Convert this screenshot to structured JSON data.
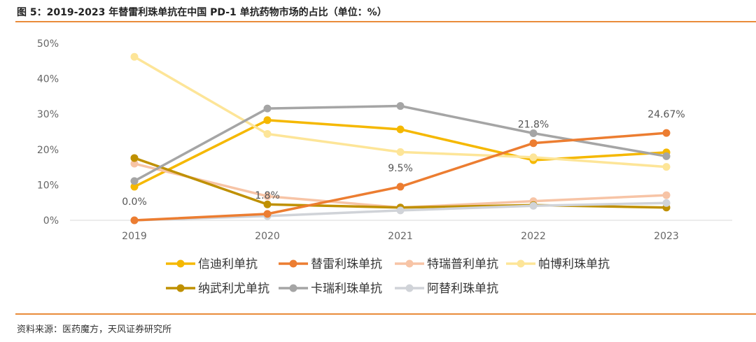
{
  "header": {
    "title": "图 5：2019-2023 年替雷利珠单抗在中国 PD-1 单抗药物市场的占比（单位：%）"
  },
  "footer": {
    "source": "资料来源：医药魔方，天风证券研究所"
  },
  "chart_data": {
    "type": "line",
    "categories": [
      "2019",
      "2020",
      "2021",
      "2022",
      "2023"
    ],
    "ylim": [
      0,
      50
    ],
    "yticks": [
      "0%",
      "10%",
      "20%",
      "30%",
      "40%",
      "50%"
    ],
    "grid": false,
    "legend_position": "bottom",
    "series": [
      {
        "name": "信迪利单抗",
        "color": "#f5b800",
        "values": [
          9.5,
          28.3,
          25.7,
          17.0,
          19.2
        ]
      },
      {
        "name": "替雷利珠单抗",
        "color": "#ec7d31",
        "values": [
          0.0,
          1.8,
          9.5,
          21.8,
          24.67
        ]
      },
      {
        "name": "特瑞普利单抗",
        "color": "#f7c4a6",
        "values": [
          16.0,
          6.8,
          3.6,
          5.4,
          7.1
        ]
      },
      {
        "name": "帕博利珠单抗",
        "color": "#fde598",
        "values": [
          46.2,
          24.4,
          19.3,
          17.8,
          15.1
        ]
      },
      {
        "name": "纳武利尤单抗",
        "color": "#bf9000",
        "values": [
          17.6,
          4.5,
          3.6,
          4.3,
          3.6
        ]
      },
      {
        "name": "卡瑞利珠单抗",
        "color": "#a5a5a5",
        "values": [
          11.1,
          31.6,
          32.3,
          24.6,
          18.1
        ]
      },
      {
        "name": "阿替利珠单抗",
        "color": "#d0d3d8",
        "values": [
          0.0,
          1.2,
          2.8,
          4.1,
          4.9
        ]
      }
    ],
    "data_labels": [
      {
        "series": "替雷利珠单抗",
        "index": 0,
        "text": "0.0%"
      },
      {
        "series": "替雷利珠单抗",
        "index": 1,
        "text": "1.8%"
      },
      {
        "series": "替雷利珠单抗",
        "index": 2,
        "text": "9.5%"
      },
      {
        "series": "替雷利珠单抗",
        "index": 3,
        "text": "21.8%"
      },
      {
        "series": "替雷利珠单抗",
        "index": 4,
        "text": "24.67%"
      }
    ]
  }
}
